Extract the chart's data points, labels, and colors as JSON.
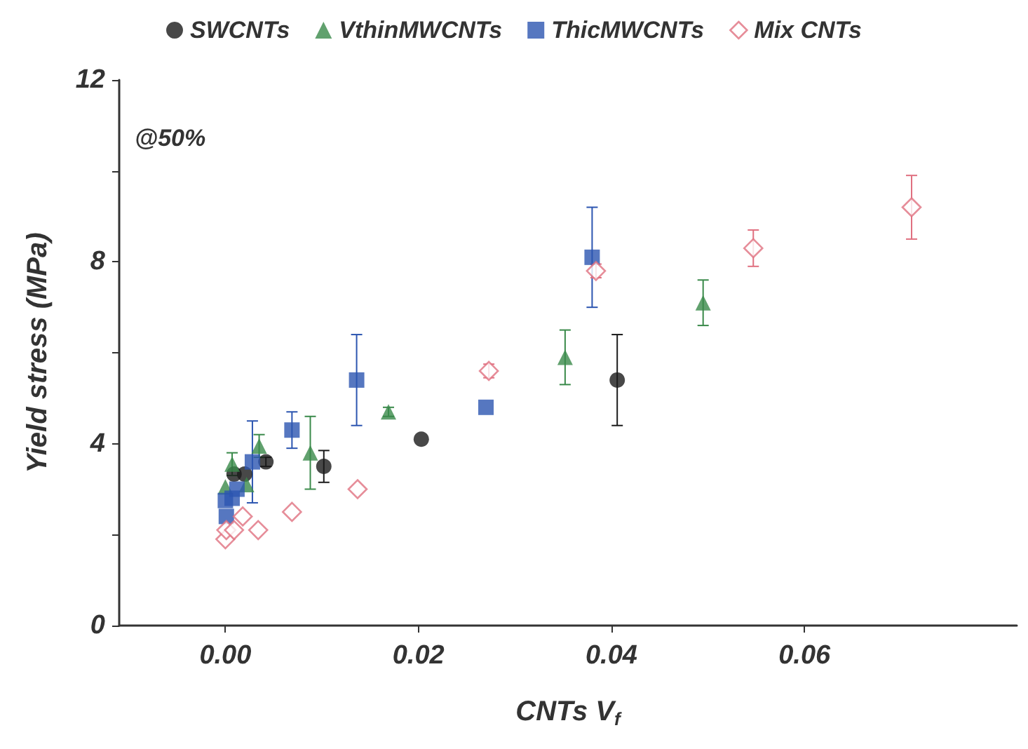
{
  "chart_data": {
    "type": "scatter",
    "xlabel": "CNTs V$_{f}$",
    "ylabel": "Yield stress (MPa)",
    "annotations": [
      "@50%"
    ],
    "xlim": [
      -0.011,
      0.082
    ],
    "xticks": [
      {
        "value": 0,
        "label": "0.00"
      },
      {
        "value": 0.02,
        "label": "0.02"
      },
      {
        "value": 0.04,
        "label": "0.04"
      },
      {
        "value": 0.06,
        "label": "0.06"
      }
    ],
    "ylim": [
      0,
      12
    ],
    "yticks": [
      0,
      {
        "value": 2,
        "label": null
      },
      4,
      {
        "value": 6,
        "label": null
      },
      8,
      {
        "value": 10,
        "label": null
      },
      12
    ],
    "grid": false,
    "legend": "top",
    "series": [
      {
        "name": "SWCNTs",
        "color": "#1a1a1a",
        "marker": "circle",
        "x": [
          0.0009,
          0.002,
          0.0042,
          0.0102,
          0.0203,
          0.0406
        ],
        "values": [
          3.33,
          3.33,
          3.6,
          3.5,
          4.1,
          5.4
        ],
        "errors": [
          null,
          null,
          0.1,
          0.35,
          null,
          1.0
        ]
      },
      {
        "name": "VthinMWCNTs",
        "color": "#3a8a4a",
        "marker": "triangle",
        "x": [
          0.0,
          0.0007,
          0.0022,
          0.0035,
          0.0088,
          0.0169,
          0.0352,
          0.0495
        ],
        "values": [
          3.05,
          3.55,
          3.1,
          3.95,
          3.8,
          4.7,
          5.9,
          7.1
        ],
        "errors": [
          null,
          0.25,
          null,
          0.25,
          0.8,
          0.1,
          0.6,
          0.5
        ]
      },
      {
        "name": "ThicMWCNTs",
        "color": "#2c55b0",
        "marker": "square",
        "x": [
          0.0001,
          0.0,
          0.0007,
          0.0012,
          0.0028,
          0.0069,
          0.0136,
          0.027,
          0.038
        ],
        "values": [
          2.4,
          2.75,
          2.8,
          3.0,
          3.6,
          4.3,
          5.4,
          4.8,
          8.1
        ],
        "errors": [
          null,
          null,
          null,
          null,
          0.9,
          0.4,
          1.0,
          null,
          1.1
        ]
      },
      {
        "name": "Mix CNTs",
        "color": "#e07080",
        "marker": "diamond",
        "x": [
          0.0,
          0.0001,
          0.0009,
          0.0018,
          0.0034,
          0.0069,
          0.0137,
          0.0273,
          0.0384,
          0.0547,
          0.0711
        ],
        "values": [
          1.9,
          2.1,
          2.1,
          2.4,
          2.1,
          2.5,
          3.0,
          5.6,
          7.8,
          8.3,
          9.2
        ],
        "errors": [
          null,
          null,
          null,
          null,
          null,
          null,
          null,
          0.15,
          0.15,
          0.4,
          0.7
        ]
      }
    ]
  }
}
